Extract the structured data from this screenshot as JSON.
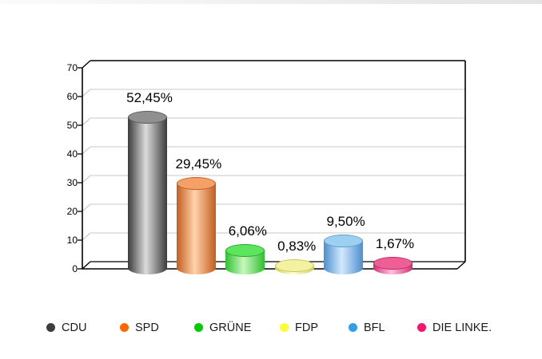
{
  "chart_data": {
    "type": "bar",
    "style": "3d-cylinder-bar",
    "title": "",
    "xlabel": "",
    "ylabel": "",
    "ylim": [
      0,
      70
    ],
    "ytick_interval": 10,
    "yticks": [
      0,
      10,
      20,
      30,
      40,
      50,
      60,
      70
    ],
    "ytick_labels": [
      "0",
      "10",
      "20",
      "30",
      "40",
      "50",
      "60",
      "70"
    ],
    "grid": true,
    "gridline_color": "#c9c9c9",
    "frame_color": "#000000",
    "decimal_style": "comma",
    "categories": [
      "CDU",
      "SPD",
      "GRÜNE",
      "FDP",
      "BFL",
      "DIE LINKE."
    ],
    "values": [
      52.45,
      29.45,
      6.06,
      0.83,
      9.5,
      1.67
    ],
    "series": [
      {
        "name": "CDU",
        "value": 52.45,
        "label": "52,45%",
        "marker": "#3d3d3d",
        "body_edge": "#3b3b3b",
        "body_mid": "#dcdcdc",
        "top_fill": "#909090",
        "top_rim": "#5a5a5a"
      },
      {
        "name": "SPD",
        "value": 29.45,
        "label": "29,45%",
        "marker": "#ff6600",
        "body_edge": "#c35d1d",
        "body_mid": "#ffd4ac",
        "top_fill": "#f5a066",
        "top_rim": "#bf5f1f"
      },
      {
        "name": "GRÜNE",
        "value": 6.06,
        "label": "6,06%",
        "marker": "#00cc00",
        "body_edge": "#30c030",
        "body_mid": "#c8f8bc",
        "top_fill": "#5de65d",
        "top_rim": "#2aa42a"
      },
      {
        "name": "FDP",
        "value": 0.83,
        "label": "0,83%",
        "marker": "#fdfd32",
        "body_edge": "#d0d060",
        "body_mid": "#ffffd2",
        "top_fill": "#f2f2a0",
        "top_rim": "#c8c862"
      },
      {
        "name": "BFL",
        "value": 9.5,
        "label": "9,50%",
        "marker": "#2e9fe8",
        "body_edge": "#4b8fcf",
        "body_mid": "#d2eafb",
        "top_fill": "#9ccff0",
        "top_rim": "#5e9ed2"
      },
      {
        "name": "DIE LINKE.",
        "value": 1.67,
        "label": "1,67%",
        "marker": "#f7146b",
        "body_edge": "#d22f78",
        "body_mid": "#ffc2dc",
        "top_fill": "#ee5f95",
        "top_rim": "#c02861"
      }
    ],
    "legend": {
      "position": "bottom-horizontal",
      "entries": [
        "CDU",
        "SPD",
        "GRÜNE",
        "FDP",
        "BFL",
        "DIE LINKE."
      ]
    }
  }
}
